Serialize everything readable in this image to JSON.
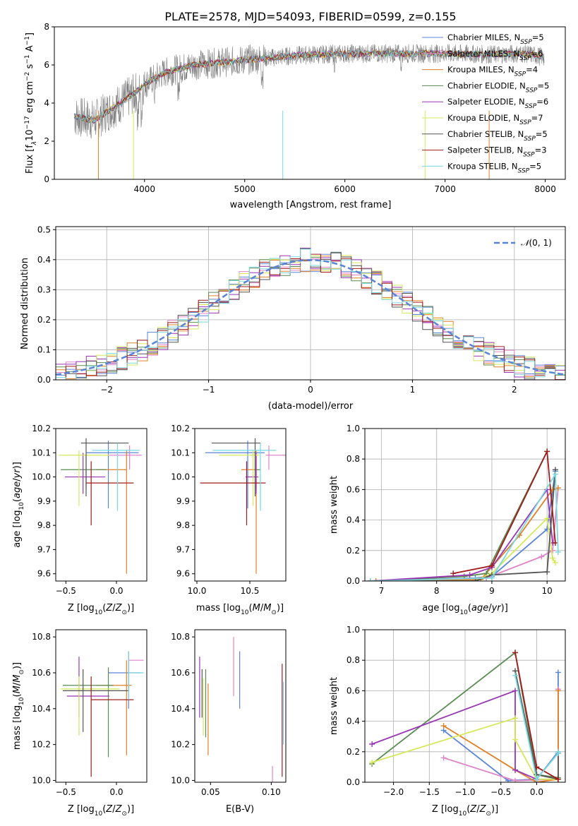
{
  "figure": {
    "title": "PLATE=2578, MJD=54093, FIBERID=0599, z=0.155"
  },
  "series_legend": [
    {
      "name": "Chabrier MILES, N_SSP=5",
      "base": "Chabrier MILES, N",
      "sub": "SSP",
      "tail": "=5",
      "color": "#5b84d6"
    },
    {
      "name": "Salpeter MILES, N_SSP=6",
      "base": "Salpeter MILES, N",
      "sub": "SSP",
      "tail": "=6",
      "color": "#e084c8"
    },
    {
      "name": "Kroupa MILES, N_SSP=4",
      "base": "Kroupa MILES, N",
      "sub": "SSP",
      "tail": "=4",
      "color": "#e0812a"
    },
    {
      "name": "Chabrier ELODIE, N_SSP=5",
      "base": "Chabrier ELODIE, N",
      "sub": "SSP",
      "tail": "=5",
      "color": "#5a8c52"
    },
    {
      "name": "Salpeter ELODIE, N_SSP=6",
      "base": "Salpeter ELODIE, N",
      "sub": "SSP",
      "tail": "=6",
      "color": "#9a35b5"
    },
    {
      "name": "Kroupa ELODIE, N_SSP=7",
      "base": "Kroupa ELODIE, N",
      "sub": "SSP",
      "tail": "=7",
      "color": "#d6e85a"
    },
    {
      "name": "Chabrier STELIB, N_SSP=5",
      "base": "Chabrier STELIB, N",
      "sub": "SSP",
      "tail": "=5",
      "color": "#555555"
    },
    {
      "name": "Salpeter STELIB, N_SSP=3",
      "base": "Salpeter STELIB, N",
      "sub": "SSP",
      "tail": "=3",
      "color": "#a01c1c"
    },
    {
      "name": "Kroupa STELIB, N_SSP=5",
      "base": "Kroupa STELIB, N",
      "sub": "SSP",
      "tail": "=5",
      "color": "#7ad8de"
    }
  ],
  "chart_data": [
    {
      "type": "line",
      "panel": "spectrum",
      "xlabel": "wavelength [Angstrom, rest frame]",
      "ylabel_parts": {
        "a": "Flux [f",
        "b": "λ",
        "c": "10",
        "d": "−17",
        "e": " erg cm",
        "f": "−2",
        "g": " s",
        "h": "−1",
        "i": " A",
        "j": "−1",
        "k": "]"
      },
      "xlim": [
        3100,
        8200
      ],
      "ylim": [
        0,
        8
      ],
      "xticks": [
        4000,
        5000,
        6000,
        7000,
        8000
      ],
      "yticks": [
        0,
        2,
        4,
        6,
        8
      ],
      "data_color": "#808080",
      "continuum_x": [
        3300,
        3500,
        3700,
        3900,
        4000,
        4200,
        4500,
        5000,
        5500,
        6000,
        6500,
        7000,
        7500,
        7800,
        8000
      ],
      "continuum_y": [
        3.3,
        3.1,
        3.8,
        4.5,
        5.0,
        5.6,
        6.0,
        6.25,
        6.5,
        6.6,
        6.6,
        6.6,
        6.55,
        6.6,
        6.4
      ]
    },
    {
      "type": "histogram",
      "panel": "residuals",
      "xlabel": "(data-model)/error",
      "ylabel": "Normed distribution",
      "xlim": [
        -2.5,
        2.5
      ],
      "ylim": [
        0,
        0.51
      ],
      "xticks": [
        -2,
        -1,
        0,
        1,
        2
      ],
      "xtick_labels": [
        "−2",
        "−1",
        "0",
        "1",
        "2"
      ],
      "yticks": [
        0.0,
        0.1,
        0.2,
        0.3,
        0.4,
        0.5
      ],
      "ytick_labels": [
        "0.0",
        "0.1",
        "0.2",
        "0.3",
        "0.4",
        "0.5"
      ],
      "bin_width": 0.1,
      "reference": {
        "label": "N(0,1)",
        "mean": 0,
        "sigma": 1,
        "color": "#5b84d6"
      },
      "grid": true
    },
    {
      "type": "errorbar",
      "panel": "age_vs_Z",
      "xlabel": "Z [log10(Z/Z⊙)]",
      "ylabel": "age  [log10(age/yr)]",
      "xlim": [
        -0.6,
        0.3
      ],
      "ylim": [
        9.57,
        10.2
      ],
      "xticks": [
        -0.5,
        0.0
      ],
      "xtick_labels": [
        "−0.5",
        "0.0"
      ],
      "yticks": [
        9.6,
        9.7,
        9.8,
        9.9,
        10.0,
        10.1,
        10.2
      ],
      "ytick_labels": [
        "9.6",
        "9.7",
        "9.8",
        "9.9",
        "10.0",
        "10.1",
        "10.2"
      ],
      "points": [
        {
          "x": -0.08,
          "y": 10.1,
          "xerr": [
            0.22,
            0.3
          ],
          "yerr": [
            0.23,
            0.05
          ],
          "color": "#5b84d6"
        },
        {
          "x": 0.13,
          "y": 10.09,
          "xerr": [
            0.2,
            0.12
          ],
          "yerr": [
            0.06,
            0.04
          ],
          "color": "#e084c8"
        },
        {
          "x": 0.1,
          "y": 10.03,
          "xerr": [
            0.3,
            0.0
          ],
          "yerr": [
            0.43,
            0.08
          ],
          "color": "#e0812a"
        },
        {
          "x": -0.3,
          "y": 10.03,
          "xerr": [
            0.25,
            0.2
          ],
          "yerr": [
            0.08,
            0.06
          ],
          "color": "#5a8c52"
        },
        {
          "x": -0.33,
          "y": 10.0,
          "xerr": [
            0.18,
            0.22
          ],
          "yerr": [
            0.07,
            0.1
          ],
          "color": "#9a35b5"
        },
        {
          "x": -0.37,
          "y": 10.09,
          "xerr": [
            0.2,
            0.3
          ],
          "yerr": [
            0.21,
            0.02
          ],
          "color": "#d6e85a"
        },
        {
          "x": -0.3,
          "y": 10.14,
          "xerr": [
            0.05,
            0.42
          ],
          "yerr": [
            0.22,
            0.02
          ],
          "color": "#555555"
        },
        {
          "x": -0.25,
          "y": 9.975,
          "xerr": [
            0.05,
            0.42
          ],
          "yerr": [
            0.175,
            0.09
          ],
          "color": "#a01c1c"
        },
        {
          "x": 0.01,
          "y": 10.11,
          "xerr": [
            0.25,
            0.22
          ],
          "yerr": [
            0.25,
            0.03
          ],
          "color": "#7ad8de"
        }
      ]
    },
    {
      "type": "errorbar",
      "panel": "age_vs_mass",
      "xlabel": "mass [log10(M/M⊙)]",
      "xlim": [
        9.98,
        10.84
      ],
      "ylim": [
        9.57,
        10.2
      ],
      "xticks": [
        10.0,
        10.5
      ],
      "xtick_labels": [
        "10.0",
        "10.5"
      ],
      "yticks": [
        9.6,
        9.7,
        9.8,
        9.9,
        10.0,
        10.1,
        10.2
      ],
      "ytick_labels": [
        "9.6",
        "9.7",
        "9.8",
        "9.9",
        "10.0",
        "10.1",
        "10.2"
      ],
      "points": [
        {
          "x": 10.48,
          "y": 10.1,
          "xerr": [
            0.4,
            0.16
          ],
          "yerr": [
            0.23,
            0.05
          ],
          "color": "#5b84d6"
        },
        {
          "x": 10.68,
          "y": 10.09,
          "xerr": [
            0.03,
            0.17
          ],
          "yerr": [
            0.06,
            0.04
          ],
          "color": "#e084c8"
        },
        {
          "x": 10.56,
          "y": 10.03,
          "xerr": [
            0.14,
            0.0
          ],
          "yerr": [
            0.43,
            0.08
          ],
          "color": "#e0812a"
        },
        {
          "x": 10.56,
          "y": 10.03,
          "xerr": [
            0.0,
            0.04
          ],
          "yerr": [
            0.08,
            0.06
          ],
          "color": "#5a8c52"
        },
        {
          "x": 10.56,
          "y": 10.0,
          "xerr": [
            0.1,
            0.02
          ],
          "yerr": [
            0.07,
            0.1
          ],
          "color": "#9a35b5"
        },
        {
          "x": 10.53,
          "y": 10.09,
          "xerr": [
            0.32,
            0.06
          ],
          "yerr": [
            0.21,
            0.02
          ],
          "color": "#d6e85a"
        },
        {
          "x": 10.55,
          "y": 10.14,
          "xerr": [
            0.41,
            0.05
          ],
          "yerr": [
            0.22,
            0.02
          ],
          "color": "#555555"
        },
        {
          "x": 10.47,
          "y": 9.975,
          "xerr": [
            0.44,
            0.18
          ],
          "yerr": [
            0.175,
            0.09
          ],
          "color": "#a01c1c"
        },
        {
          "x": 10.6,
          "y": 10.11,
          "xerr": [
            0.45,
            0.15
          ],
          "yerr": [
            0.25,
            0.03
          ],
          "color": "#7ad8de"
        }
      ]
    },
    {
      "type": "line",
      "panel": "mass_weight_vs_age",
      "xlabel": "age  [log10(age/yr)]",
      "ylabel": "mass weight",
      "xlim": [
        6.7,
        10.33
      ],
      "ylim": [
        0,
        1.0
      ],
      "xticks": [
        7,
        8,
        9,
        10
      ],
      "xtick_labels": [
        "7",
        "8",
        "9",
        "10"
      ],
      "yticks": [
        0.0,
        0.2,
        0.4,
        0.6,
        0.8,
        1.0
      ],
      "ytick_labels": [
        "0.0",
        "0.2",
        "0.4",
        "0.6",
        "0.8",
        "1.0"
      ],
      "grid": true,
      "series": [
        {
          "color": "#5b84d6",
          "x": [
            6.8,
            8.7,
            9.0,
            10.0,
            10.15
          ],
          "y": [
            0.0,
            0.02,
            0.03,
            0.34,
            0.72
          ]
        },
        {
          "color": "#e084c8",
          "x": [
            6.8,
            8.9,
            9.9,
            10.1,
            10.2
          ],
          "y": [
            0.0,
            0.02,
            0.16,
            0.2,
            0.61
          ]
        },
        {
          "color": "#e0812a",
          "x": [
            6.9,
            8.8,
            9.5,
            10.1,
            10.2
          ],
          "y": [
            0.0,
            0.01,
            0.3,
            0.6,
            0.61
          ]
        },
        {
          "color": "#5a8c52",
          "x": [
            6.8,
            8.5,
            8.9,
            10.0
          ],
          "y": [
            0.0,
            0.03,
            0.05,
            0.85
          ]
        },
        {
          "color": "#9a35b5",
          "x": [
            6.8,
            8.6,
            9.0,
            10.0,
            10.1
          ],
          "y": [
            0.0,
            0.04,
            0.09,
            0.6,
            0.25
          ]
        },
        {
          "color": "#d6e85a",
          "x": [
            6.8,
            8.7,
            9.0,
            10.0,
            10.1,
            10.15
          ],
          "y": [
            0.0,
            0.0,
            0.05,
            0.41,
            0.15,
            0.12
          ]
        },
        {
          "color": "#555555",
          "x": [
            6.8,
            8.7,
            9.0,
            10.0,
            10.15
          ],
          "y": [
            0.0,
            0.0,
            0.04,
            0.06,
            0.73
          ]
        },
        {
          "color": "#a01c1c",
          "x": [
            8.3,
            9.0,
            10.0,
            10.15
          ],
          "y": [
            0.05,
            0.1,
            0.85,
            0.25
          ]
        },
        {
          "color": "#7ad8de",
          "x": [
            6.8,
            9.0,
            10.15,
            10.2
          ],
          "y": [
            0.0,
            0.02,
            0.7,
            0.19
          ]
        }
      ]
    },
    {
      "type": "errorbar",
      "panel": "mass_vs_Z",
      "xlabel": "Z [log10(Z/Z⊙)]",
      "ylabel": "mass [log10(M/M⊙)]",
      "xlim": [
        -0.6,
        0.3
      ],
      "ylim": [
        9.99,
        10.84
      ],
      "xticks": [
        -0.5,
        0.0
      ],
      "xtick_labels": [
        "−0.5",
        "0.0"
      ],
      "yticks": [
        10.0,
        10.2,
        10.4,
        10.6,
        10.8
      ],
      "ytick_labels": [
        "10.0",
        "10.2",
        "10.4",
        "10.6",
        "10.8"
      ],
      "points": [
        {
          "x": 0.12,
          "y": 10.6,
          "xerr": [
            0.2,
            0.12
          ],
          "yerr": [
            0.2,
            0.12
          ],
          "color": "#5b84d6"
        },
        {
          "x": 0.12,
          "y": 10.67,
          "xerr": [
            0.0,
            0.15
          ],
          "yerr": [
            0.1,
            0.05
          ],
          "color": "#e084c8"
        },
        {
          "x": 0.1,
          "y": 10.53,
          "xerr": [
            0.3,
            0.05
          ],
          "yerr": [
            0.39,
            0.14
          ],
          "color": "#e0812a"
        },
        {
          "x": -0.08,
          "y": 10.53,
          "xerr": [
            0.45,
            0.05
          ],
          "yerr": [
            0.4,
            0.1
          ],
          "color": "#5a8c52"
        },
        {
          "x": -0.37,
          "y": 10.47,
          "xerr": [
            0.12,
            0.3
          ],
          "yerr": [
            0.12,
            0.22
          ],
          "color": "#9a35b5"
        },
        {
          "x": -0.37,
          "y": 10.51,
          "xerr": [
            0.18,
            0.4
          ],
          "yerr": [
            0.26,
            0.07
          ],
          "color": "#d6e85a"
        },
        {
          "x": -0.33,
          "y": 10.5,
          "xerr": [
            0.2,
            0.45
          ],
          "yerr": [
            0.23,
            0.12
          ],
          "color": "#555555"
        },
        {
          "x": -0.25,
          "y": 10.45,
          "xerr": [
            0.0,
            0.42
          ],
          "yerr": [
            0.43,
            0.13
          ],
          "color": "#a01c1c"
        },
        {
          "x": 0.12,
          "y": 10.6,
          "xerr": [
            0.0,
            0.15
          ],
          "yerr": [
            0.15,
            0.12
          ],
          "color": "#7ad8de"
        }
      ]
    },
    {
      "type": "errorbar",
      "panel": "mass_vs_ebv",
      "xlabel": "E(B-V)",
      "xlim": [
        0.037,
        0.112
      ],
      "ylim": [
        9.99,
        10.84
      ],
      "xticks": [
        0.05,
        0.1
      ],
      "xtick_labels": [
        "0.05",
        "0.10"
      ],
      "yticks": [
        10.0,
        10.2,
        10.4,
        10.6,
        10.8
      ],
      "ytick_labels": [
        "10.0",
        "10.2",
        "10.4",
        "10.6",
        "10.8"
      ],
      "points": [
        {
          "x": 0.074,
          "y": 10.6,
          "yerr": [
            0.2,
            0.12
          ],
          "color": "#5b84d6"
        },
        {
          "x": 0.069,
          "y": 10.67,
          "yerr": [
            0.2,
            0.13
          ],
          "color": "#e084c8"
        },
        {
          "x": 0.101,
          "y": 10.08,
          "yerr": [
            0.09,
            0.0
          ],
          "color": "#e084c8"
        },
        {
          "x": 0.048,
          "y": 10.4,
          "yerr": [
            0.26,
            0.14
          ],
          "color": "#e0812a"
        },
        {
          "x": 0.046,
          "y": 10.5,
          "yerr": [
            0.26,
            0.12
          ],
          "color": "#5a8c52"
        },
        {
          "x": 0.041,
          "y": 10.47,
          "yerr": [
            0.12,
            0.22
          ],
          "color": "#9a35b5"
        },
        {
          "x": 0.044,
          "y": 10.45,
          "yerr": [
            0.2,
            0.12
          ],
          "color": "#d6e85a"
        },
        {
          "x": 0.043,
          "y": 10.5,
          "yerr": [
            0.15,
            0.12
          ],
          "color": "#555555"
        },
        {
          "x": 0.109,
          "y": 10.45,
          "yerr": [
            0.43,
            0.2
          ],
          "color": "#a01c1c"
        },
        {
          "x": 0.11,
          "y": 10.45,
          "yerr": [
            0.25,
            0.1
          ],
          "color": "#7ad8de"
        }
      ]
    },
    {
      "type": "line",
      "panel": "mass_weight_vs_Z",
      "xlabel": "Z [log10(Z/Z⊙)]",
      "ylabel": "mass weight",
      "xlim": [
        -2.4,
        0.4
      ],
      "ylim": [
        0,
        1.0
      ],
      "xticks": [
        -2.0,
        -1.5,
        -1.0,
        -0.5,
        0.0
      ],
      "xtick_labels": [
        "−2.0",
        "−1.5",
        "−1.0",
        "−0.5",
        "0.0"
      ],
      "yticks": [
        0.0,
        0.2,
        0.4,
        0.6,
        0.8,
        1.0
      ],
      "ytick_labels": [
        "0.0",
        "0.2",
        "0.4",
        "0.6",
        "0.8",
        "1.0"
      ],
      "grid": true,
      "series": [
        {
          "color": "#5b84d6",
          "x": [
            -1.3,
            -0.4,
            0.0,
            0.3,
            0.3
          ],
          "y": [
            0.34,
            0.01,
            0.02,
            0.2,
            0.72
          ]
        },
        {
          "color": "#e084c8",
          "x": [
            -1.3,
            -0.3,
            0.3,
            0.3
          ],
          "y": [
            0.16,
            0.01,
            0.02,
            0.61
          ]
        },
        {
          "color": "#e0812a",
          "x": [
            -1.3,
            -0.3,
            0.0,
            0.3,
            0.3
          ],
          "y": [
            0.37,
            0.08,
            0.0,
            0.02,
            0.6
          ]
        },
        {
          "color": "#5a8c52",
          "x": [
            -2.3,
            -0.3,
            0.0,
            0.3
          ],
          "y": [
            0.12,
            0.85,
            0.05,
            0.03
          ]
        },
        {
          "color": "#9a35b5",
          "x": [
            -2.3,
            -0.3,
            -0.3,
            0.0
          ],
          "y": [
            0.25,
            0.6,
            0.08,
            0.02
          ]
        },
        {
          "color": "#d6e85a",
          "x": [
            -2.3,
            -0.3,
            -0.3,
            0.0,
            0.3
          ],
          "y": [
            0.13,
            0.42,
            0.28,
            0.02,
            0.02
          ]
        },
        {
          "color": "#555555",
          "x": [
            -0.3,
            0.0,
            0.3,
            0.3
          ],
          "y": [
            0.73,
            0.05,
            0.02,
            0.19
          ]
        },
        {
          "color": "#a01c1c",
          "x": [
            -0.3,
            0.0,
            0.3
          ],
          "y": [
            0.85,
            0.1,
            0.02
          ]
        },
        {
          "color": "#7ad8de",
          "x": [
            -0.3,
            0.0,
            0.3,
            0.3
          ],
          "y": [
            0.7,
            0.02,
            0.19,
            0.2
          ]
        }
      ]
    }
  ]
}
